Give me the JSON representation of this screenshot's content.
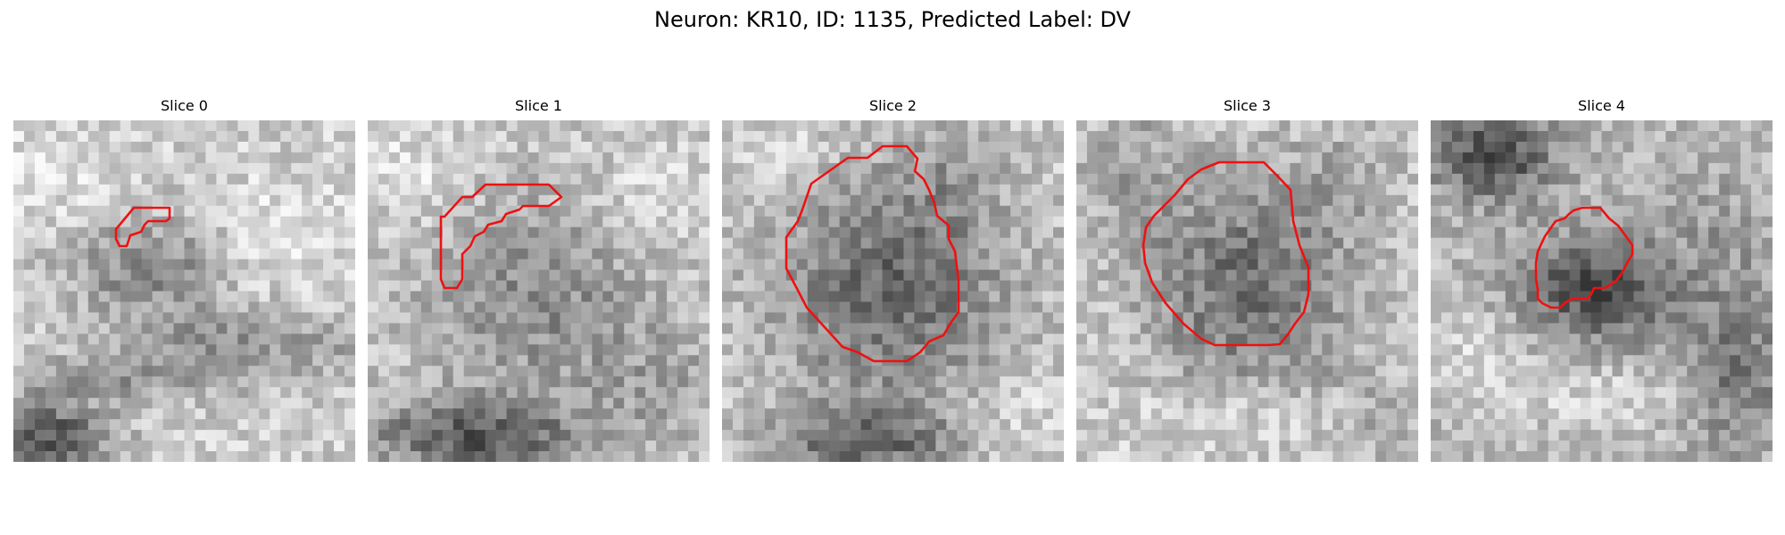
{
  "figure": {
    "title": "Neuron: KR10, ID: 1135, Predicted Label: DV"
  },
  "colors": {
    "contour": "#ee1111",
    "background": "#ffffff"
  },
  "slices": [
    {
      "title": "Slice 0"
    },
    {
      "title": "Slice 1"
    },
    {
      "title": "Slice 2"
    },
    {
      "title": "Slice 3"
    },
    {
      "title": "Slice 4"
    }
  ]
}
